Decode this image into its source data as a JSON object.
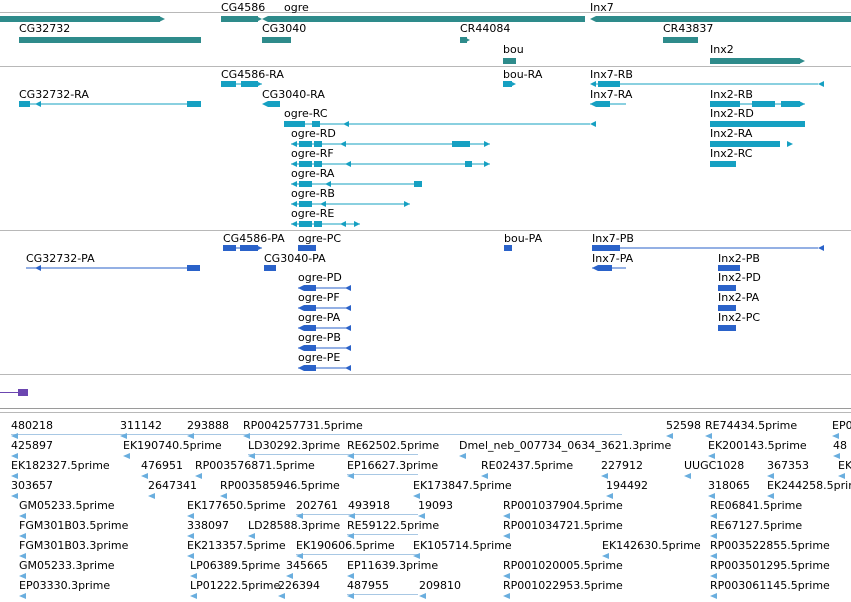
{
  "tracks": {
    "genes": {
      "color": "#2e8b8b",
      "items": [
        {
          "label": "CG4586"
        },
        {
          "label": "ogre"
        },
        {
          "label": "Inx7"
        },
        {
          "label": "CG32732"
        },
        {
          "label": "CG3040"
        },
        {
          "label": "CR44084"
        },
        {
          "label": "CR43837"
        },
        {
          "label": "bou"
        },
        {
          "label": "Inx2"
        }
      ]
    },
    "transcripts": {
      "color": "#16a0c2",
      "items": [
        {
          "label": "CG4586-RA"
        },
        {
          "label": "bou-RA"
        },
        {
          "label": "Inx7-RB"
        },
        {
          "label": "CG32732-RA"
        },
        {
          "label": "CG3040-RA"
        },
        {
          "label": "Inx7-RA"
        },
        {
          "label": "Inx2-RB"
        },
        {
          "label": "ogre-RC"
        },
        {
          "label": "Inx2-RD"
        },
        {
          "label": "ogre-RD"
        },
        {
          "label": "Inx2-RA"
        },
        {
          "label": "ogre-RF"
        },
        {
          "label": "Inx2-RC"
        },
        {
          "label": "ogre-RA"
        },
        {
          "label": "ogre-RB"
        },
        {
          "label": "ogre-RE"
        }
      ]
    },
    "proteins": {
      "color": "#2a62c9",
      "items": [
        {
          "label": "CG4586-PA"
        },
        {
          "label": "ogre-PC"
        },
        {
          "label": "bou-PA"
        },
        {
          "label": "Inx7-PB"
        },
        {
          "label": "CG32732-PA"
        },
        {
          "label": "CG3040-PA"
        },
        {
          "label": "Inx7-PA"
        },
        {
          "label": "Inx2-PB"
        },
        {
          "label": "ogre-PD"
        },
        {
          "label": "Inx2-PD"
        },
        {
          "label": "ogre-PF"
        },
        {
          "label": "Inx2-PA"
        },
        {
          "label": "ogre-PA"
        },
        {
          "label": "Inx2-PC"
        },
        {
          "label": "ogre-PB"
        },
        {
          "label": "ogre-PE"
        }
      ]
    },
    "misc": {
      "color": "#6b46b0"
    },
    "ests": {
      "color": "#6aaede",
      "items": [
        {
          "label": "480218"
        },
        {
          "label": "311142"
        },
        {
          "label": "293888"
        },
        {
          "label": "RP004257731.5prime"
        },
        {
          "label": "52598"
        },
        {
          "label": "RE74434.5prime"
        },
        {
          "label": "EP0"
        },
        {
          "label": "425897"
        },
        {
          "label": "EK190740.5prime"
        },
        {
          "label": "LD30292.3prime"
        },
        {
          "label": "RE62502.5prime"
        },
        {
          "label": "Dmel_neb_007734_0634_3621.3prime"
        },
        {
          "label": "EK200143.5prime"
        },
        {
          "label": "48"
        },
        {
          "label": "EK182327.5prime"
        },
        {
          "label": "476951"
        },
        {
          "label": "RP003576871.5prime"
        },
        {
          "label": "EP16627.3prime"
        },
        {
          "label": "RE02437.5prime"
        },
        {
          "label": "227912"
        },
        {
          "label": "UUGC1028"
        },
        {
          "label": "367353"
        },
        {
          "label": "EK"
        },
        {
          "label": "303657"
        },
        {
          "label": "2647341"
        },
        {
          "label": "RP003585946.5prime"
        },
        {
          "label": "EK173847.5prime"
        },
        {
          "label": "194492"
        },
        {
          "label": "318065"
        },
        {
          "label": "EK244258.5prime"
        },
        {
          "label": "GM05233.5prime"
        },
        {
          "label": "EK177650.5prime"
        },
        {
          "label": "202761"
        },
        {
          "label": "493918"
        },
        {
          "label": "19093"
        },
        {
          "label": "RP001037904.5prime"
        },
        {
          "label": "RE06841.5prime"
        },
        {
          "label": "FGM301B03.5prime"
        },
        {
          "label": "338097"
        },
        {
          "label": "LD28588.3prime"
        },
        {
          "label": "RE59122.5prime"
        },
        {
          "label": "RP001034721.5prime"
        },
        {
          "label": "RE67127.5prime"
        },
        {
          "label": "FGM301B03.3prime"
        },
        {
          "label": "EK213357.5prime"
        },
        {
          "label": "EK190606.5prime"
        },
        {
          "label": "EK105714.5prime"
        },
        {
          "label": "EK142630.5prime"
        },
        {
          "label": "RP003522855.5prime"
        },
        {
          "label": "GM05233.3prime"
        },
        {
          "label": "LP06389.5prime"
        },
        {
          "label": "345665"
        },
        {
          "label": "EP11639.3prime"
        },
        {
          "label": "RP001020005.5prime"
        },
        {
          "label": "RP003501295.5prime"
        },
        {
          "label": "EP03330.3prime"
        },
        {
          "label": "LP01222.5prime"
        },
        {
          "label": "226394"
        },
        {
          "label": "487955"
        },
        {
          "label": "209810"
        },
        {
          "label": "RP001022953.5prime"
        },
        {
          "label": "RP003061145.5prime"
        }
      ]
    }
  }
}
